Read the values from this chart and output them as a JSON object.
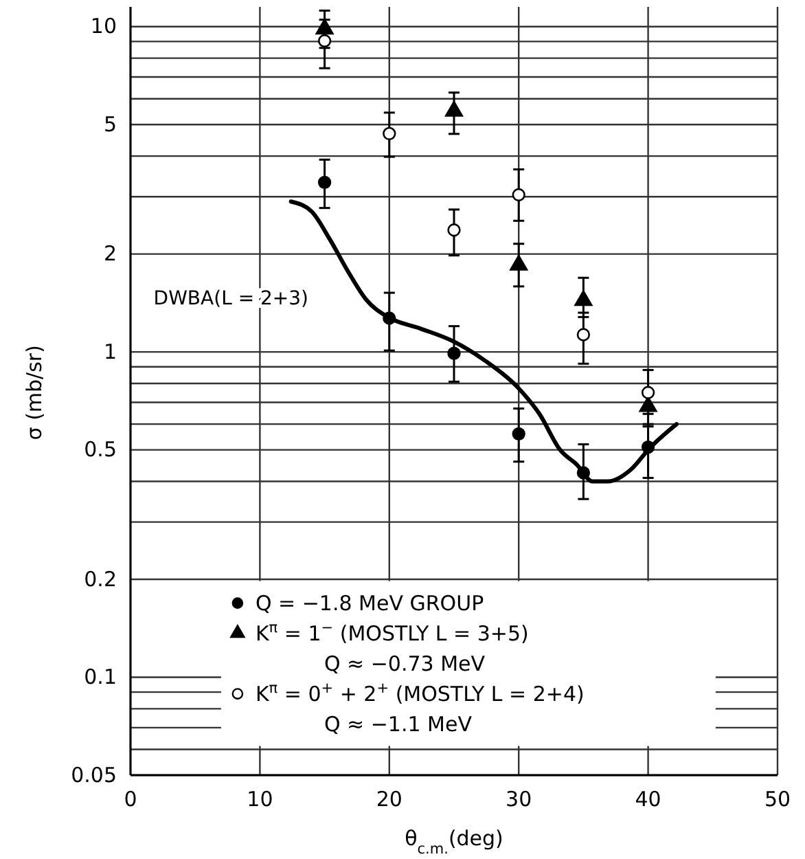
{
  "chart_data": {
    "type": "scatter",
    "xlabel": "θ$_{c.m.}$(deg)",
    "ylabel": "σ (mb/sr)",
    "log": "y",
    "grid": true,
    "legend": "bottom left",
    "xlim": [
      0,
      50
    ],
    "xticks": [
      0,
      10,
      20,
      30,
      40,
      50
    ],
    "ylim": [
      0.05,
      11.5
    ],
    "yticks": [
      0.05,
      {
        "value": 0.06,
        "label": null
      },
      {
        "value": 0.07,
        "label": null
      },
      {
        "value": 0.08,
        "label": null
      },
      {
        "value": 0.09,
        "label": null
      },
      0.1,
      0.2,
      {
        "value": 0.3,
        "label": null
      },
      {
        "value": 0.4,
        "label": null
      },
      0.5,
      {
        "value": 0.6,
        "label": null
      },
      {
        "value": 0.7,
        "label": null
      },
      {
        "value": 0.8,
        "label": null
      },
      {
        "value": 0.9,
        "label": null
      },
      1,
      2,
      {
        "value": 3,
        "label": null
      },
      {
        "value": 4,
        "label": null
      },
      5,
      {
        "value": 6,
        "label": null
      },
      {
        "value": 7,
        "label": null
      },
      {
        "value": 8,
        "label": null
      },
      {
        "value": 9,
        "label": null
      },
      10
    ],
    "series": [
      {
        "name": "Q = −1.8 MeV GROUP",
        "marker": "circle",
        "color": "#000000",
        "x": [
          15,
          20,
          25,
          30,
          35,
          40
        ],
        "values": [
          3.32,
          1.27,
          0.99,
          0.56,
          0.425,
          0.51
        ],
        "errors": [
          [
            2.77,
            3.9
          ],
          [
            1.01,
            1.52
          ],
          [
            0.81,
            1.2
          ],
          [
            0.46,
            0.67
          ],
          [
            0.353,
            0.52
          ],
          [
            0.41,
            0.6
          ]
        ]
      },
      {
        "name": "K$^{π}$ = 1$^{−}$ (MOSTLY L = 3+5)\nQ ≈ −0.73 MeV",
        "marker": "triangle",
        "color": "#000000",
        "x": [
          15,
          25,
          30,
          35,
          40
        ],
        "values": [
          9.84,
          5.5,
          1.85,
          1.44,
          0.68
        ],
        "errors": [
          [
            8.6,
            11.2
          ],
          [
            4.68,
            6.27
          ],
          [
            1.59,
            2.15
          ],
          [
            1.28,
            1.69
          ],
          [
            0.59,
            0.75
          ]
        ]
      },
      {
        "name": "K$^{π}$ = 0$^{+}$ + 2$^{+}$ (MOSTLY L = 2+4)\nQ ≈ −1.1 MeV",
        "marker": "circle",
        "color": "#ffffff",
        "x": [
          15,
          20,
          25,
          30,
          35,
          40
        ],
        "values": [
          9.04,
          4.69,
          2.37,
          3.04,
          1.13,
          0.75
        ],
        "errors": [
          [
            7.45,
            10.5
          ],
          [
            3.98,
            5.44
          ],
          [
            1.98,
            2.74
          ],
          [
            2.53,
            3.64
          ],
          [
            0.92,
            1.32
          ],
          [
            0.645,
            0.88
          ]
        ]
      },
      {
        "name": "DWBA(L = 2+3)",
        "type": "line",
        "marker": "none",
        "color": "#000000",
        "x": [
          12.4,
          14.0,
          15.4,
          16.8,
          18.2,
          19.9,
          22.4,
          24.9,
          27.4,
          29.9,
          31.6,
          33.2,
          34.5,
          35.7,
          36.9,
          38.7,
          40.1,
          42.2
        ],
        "values": [
          2.9,
          2.7,
          2.22,
          1.77,
          1.45,
          1.28,
          1.18,
          1.08,
          0.94,
          0.78,
          0.645,
          0.5,
          0.45,
          0.4,
          0.4,
          0.436,
          0.505,
          0.6
        ]
      }
    ]
  }
}
